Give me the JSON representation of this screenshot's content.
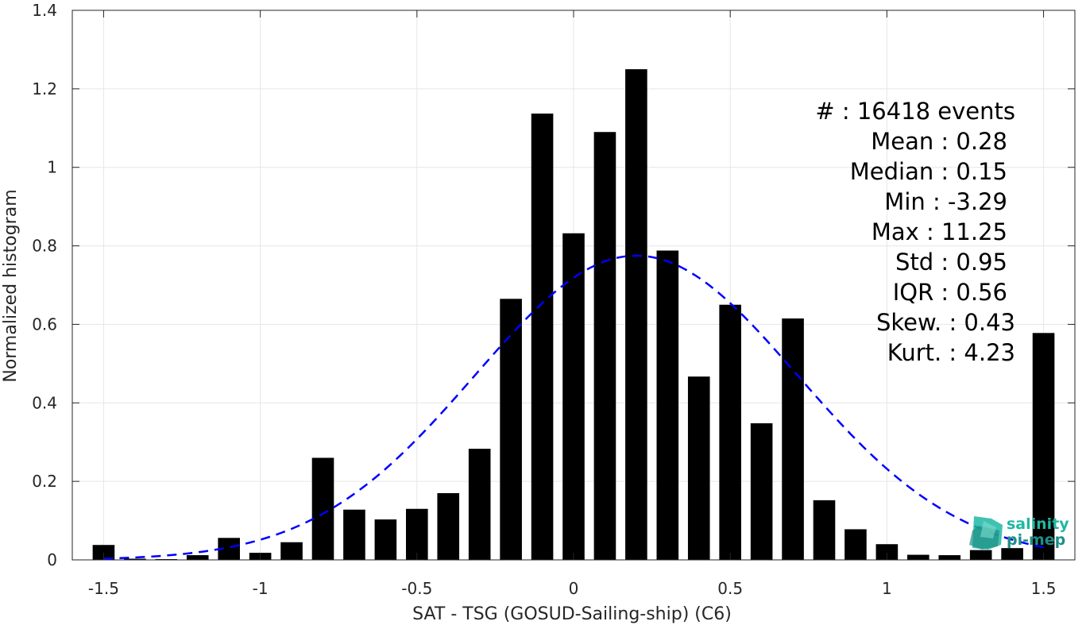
{
  "chart_data": {
    "type": "bar",
    "xlabel": "SAT - TSG (GOSUD-Sailing-ship) (C6)",
    "ylabel": "Normalized histogram",
    "xlim": [
      -1.6,
      1.6
    ],
    "ylim": [
      0,
      1.4
    ],
    "xticks": [
      -1.5,
      -1,
      -0.5,
      0,
      0.5,
      1,
      1.5
    ],
    "xtick_labels": [
      "-1.5",
      "-1",
      "-0.5",
      "0",
      "0.5",
      "1",
      "1.5"
    ],
    "yticks": [
      0,
      0.2,
      0.4,
      0.6,
      0.8,
      1,
      1.2,
      1.4
    ],
    "ytick_labels": [
      "0",
      "0.2",
      "0.4",
      "0.6",
      "0.8",
      "1",
      "1.2",
      "1.4"
    ],
    "grid": true,
    "bar_color": "#000000",
    "bar_width": 0.07,
    "x": [
      -1.5,
      -1.4,
      -1.3,
      -1.2,
      -1.1,
      -1.0,
      -0.9,
      -0.8,
      -0.7,
      -0.6,
      -0.5,
      -0.4,
      -0.3,
      -0.2,
      -0.1,
      0.0,
      0.1,
      0.2,
      0.3,
      0.4,
      0.5,
      0.6,
      0.7,
      0.8,
      0.9,
      1.0,
      1.1,
      1.2,
      1.3,
      1.4,
      1.5
    ],
    "values": [
      0.038,
      0.003,
      0.002,
      0.012,
      0.056,
      0.018,
      0.045,
      0.26,
      0.128,
      0.103,
      0.13,
      0.17,
      0.283,
      0.665,
      1.137,
      0.832,
      1.09,
      1.25,
      0.788,
      0.467,
      0.65,
      0.348,
      0.615,
      0.152,
      0.078,
      0.04,
      0.013,
      0.012,
      0.025,
      0.03,
      0.578
    ],
    "fit_curve": {
      "type": "gaussian",
      "color": "#0000ff",
      "style": "dashed",
      "mean": 0.2,
      "std": 0.515,
      "peak": 0.775,
      "x_range": [
        -1.5,
        1.5
      ]
    },
    "annotations": [
      "#  : 16418 events",
      "Mean : 0.28",
      "Median : 0.15",
      "Min : -3.29",
      "Max : 11.25",
      "Std : 0.95",
      "IQR : 0.56",
      "Skew. : 0.43",
      "Kurt. : 4.23"
    ]
  },
  "logo": {
    "line1": "salinity",
    "line2": "pi-mep",
    "color1": "#1fb7a4",
    "color2": "#1e8f86"
  }
}
